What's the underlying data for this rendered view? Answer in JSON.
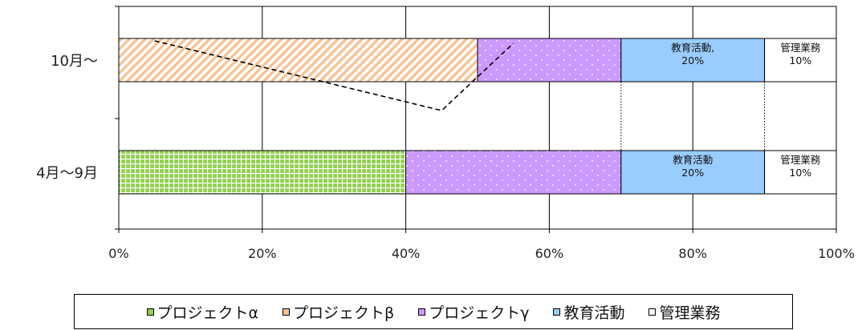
{
  "chart_data": {
    "type": "bar",
    "orientation": "horizontal",
    "stacked": "percent",
    "categories": [
      "10月～",
      "4月～9月"
    ],
    "series": [
      {
        "name": "プロジェクトα",
        "values": [
          0,
          40
        ],
        "color": "#92d050",
        "pattern": "grid"
      },
      {
        "name": "プロジェクトβ",
        "values": [
          50,
          0
        ],
        "color": "#fac090",
        "pattern": "diagonal-stripes"
      },
      {
        "name": "プロジェクトγ",
        "values": [
          20,
          30
        ],
        "color": "#cc99ff",
        "pattern": "dots"
      },
      {
        "name": "教育活動",
        "values": [
          20,
          20
        ],
        "color": "#99ccff",
        "pattern": "solid"
      },
      {
        "name": "管理業務",
        "values": [
          10,
          10
        ],
        "color": "#ffffff",
        "pattern": "solid"
      }
    ],
    "data_labels": [
      {
        "category": "10月～",
        "series": "教育活動",
        "lines": [
          "教育活動,",
          "20%"
        ]
      },
      {
        "category": "10月～",
        "series": "管理業務",
        "lines": [
          "管理業務",
          "10%"
        ]
      },
      {
        "category": "4月～9月",
        "series": "教育活動",
        "lines": [
          "教育活動",
          "20%"
        ]
      },
      {
        "category": "4月～9月",
        "series": "管理業務",
        "lines": [
          "管理業務",
          "10%"
        ]
      }
    ],
    "xlim": [
      0,
      100
    ],
    "x_ticks": [
      "0%",
      "20%",
      "40%",
      "60%",
      "80%",
      "100%"
    ],
    "grid": true,
    "legend_position": "bottom",
    "annotation": {
      "type": "dashed-line",
      "points": [
        [
          5,
          "10月～"
        ],
        [
          45,
          "between"
        ],
        [
          55,
          "10月～"
        ]
      ]
    }
  }
}
